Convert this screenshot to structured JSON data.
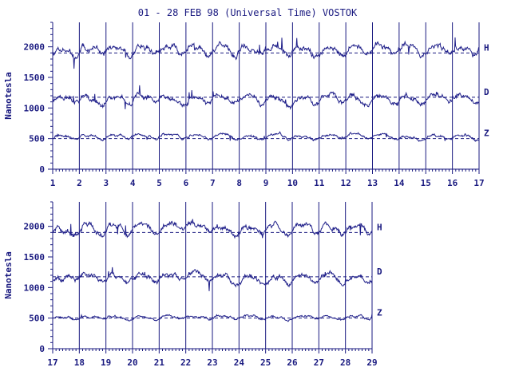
{
  "title": "01 - 28 FEB 98 (Universal Time) VOSTOK",
  "colors": {
    "ink": "#1a1a80",
    "trace": "#20208a",
    "grid": "#1a1a80"
  },
  "chart_data": [
    {
      "type": "line",
      "ylabel": "Nanotesla",
      "xlim": [
        1,
        17
      ],
      "ylim": [
        0,
        2400
      ],
      "yticks": [
        0,
        500,
        1000,
        1500,
        2000
      ],
      "xticks": [
        1,
        2,
        3,
        4,
        5,
        6,
        7,
        8,
        9,
        10,
        11,
        12,
        13,
        14,
        15,
        16,
        17
      ],
      "series": [
        {
          "name": "H",
          "baseline": 1900,
          "mean": 1950,
          "amp": 160,
          "seed": 11,
          "end_day": 17
        },
        {
          "name": "D",
          "baseline": 1175,
          "mean": 1150,
          "amp": 130,
          "seed": 23,
          "end_day": 17
        },
        {
          "name": "Z",
          "baseline": 500,
          "mean": 530,
          "amp": 70,
          "seed": 37,
          "end_day": 17
        }
      ]
    },
    {
      "type": "line",
      "ylabel": "Nanotesla",
      "xlim": [
        17,
        29
      ],
      "ylim": [
        0,
        2400
      ],
      "yticks": [
        0,
        500,
        1000,
        1500,
        2000
      ],
      "xticks": [
        17,
        18,
        19,
        20,
        21,
        22,
        23,
        24,
        25,
        26,
        27,
        28,
        29
      ],
      "series": [
        {
          "name": "H",
          "baseline": 1900,
          "mean": 1950,
          "amp": 150,
          "seed": 51,
          "end_day": 29
        },
        {
          "name": "D",
          "baseline": 1175,
          "mean": 1160,
          "amp": 130,
          "seed": 67,
          "end_day": 29
        },
        {
          "name": "Z",
          "baseline": 500,
          "mean": 510,
          "amp": 60,
          "seed": 79,
          "end_day": 29
        }
      ]
    }
  ]
}
